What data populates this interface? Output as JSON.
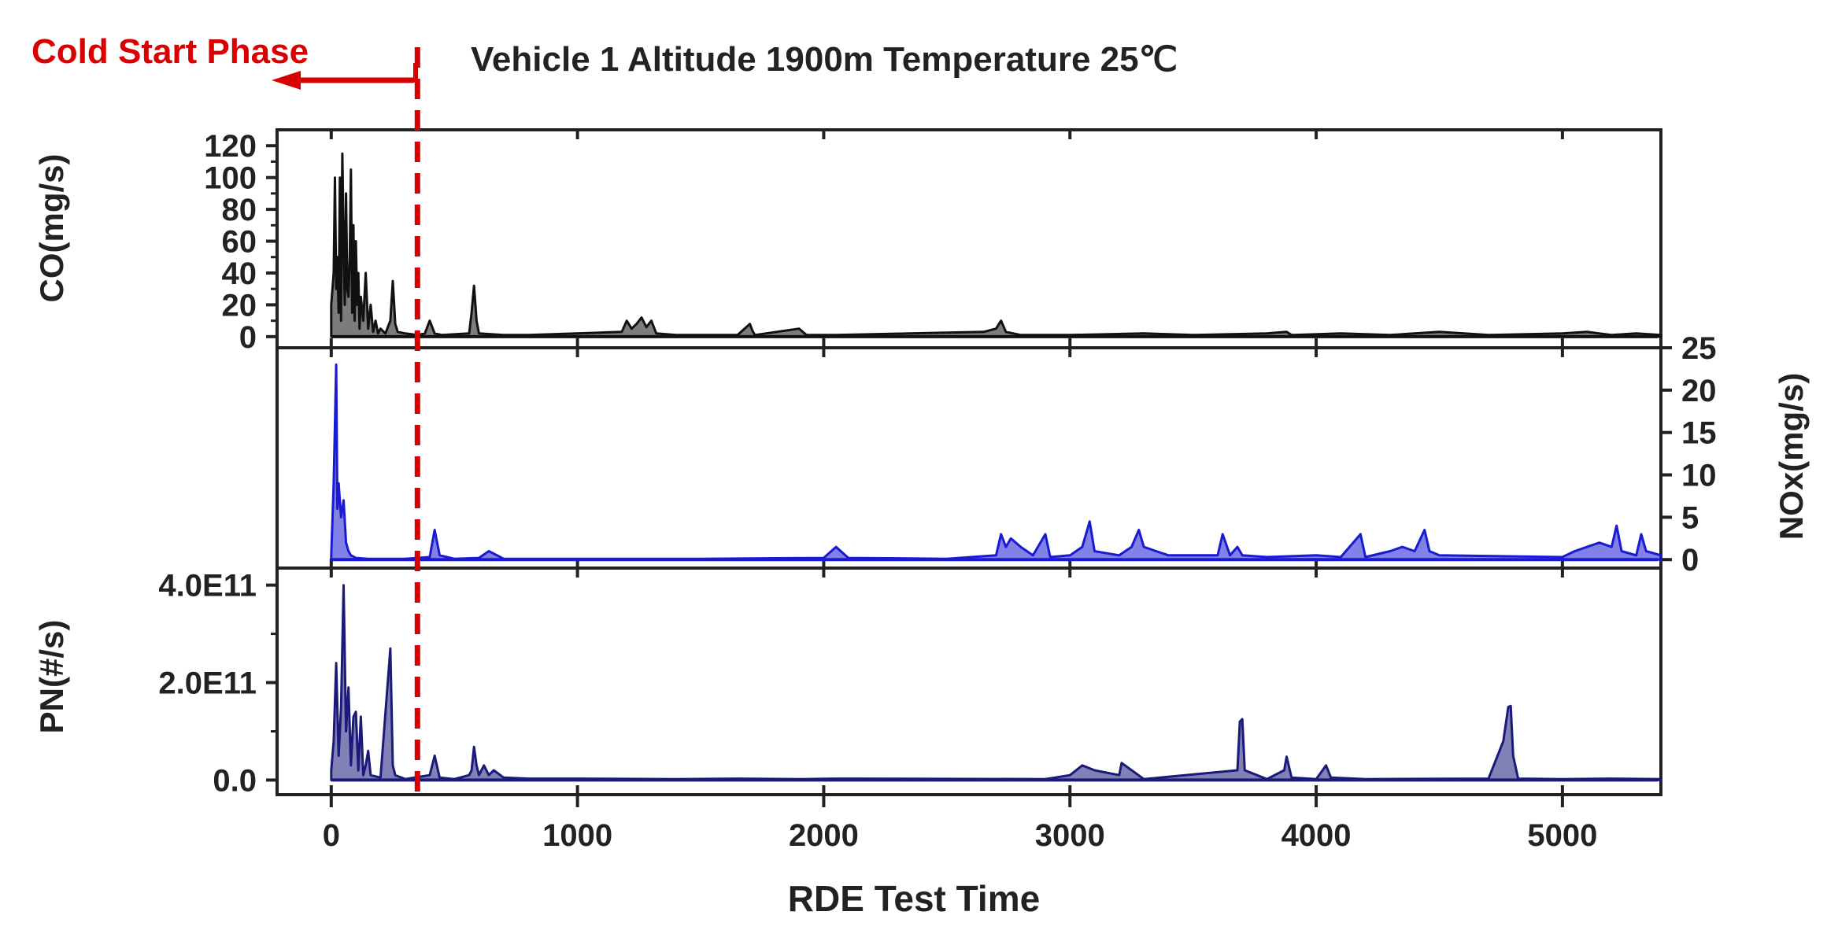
{
  "cold_start_label": "Cold Start Phase",
  "title": "Vehicle 1  Altitude 1900m  Temperature 25℃",
  "colors": {
    "co": "#111111",
    "nox": "#1a1ad4",
    "pn": "#1a1a7a",
    "cold_start": "#d80000",
    "axis": "#222222"
  },
  "chart_data": [
    {
      "type": "line",
      "panel": "CO",
      "ylabel": "CO(mg/s)",
      "axis_side": "left",
      "ylim": [
        -7,
        130
      ],
      "yticks": [
        0,
        20,
        40,
        60,
        80,
        100,
        120
      ],
      "yticklabels": [
        "0",
        "20",
        "40",
        "60",
        "80",
        "100",
        "120"
      ],
      "series": [
        {
          "x": [
            0,
            10,
            15,
            20,
            25,
            30,
            35,
            40,
            45,
            50,
            55,
            60,
            65,
            70,
            75,
            80,
            85,
            90,
            95,
            100,
            105,
            110,
            115,
            120,
            130,
            140,
            150,
            160,
            170,
            180,
            190,
            200,
            220,
            240,
            250,
            260,
            270,
            300,
            350,
            380,
            400,
            420,
            450,
            560,
            570,
            580,
            590,
            600,
            700,
            800,
            1000,
            1180,
            1200,
            1220,
            1240,
            1260,
            1280,
            1300,
            1320,
            1400,
            1650,
            1700,
            1710,
            1720,
            1900,
            1930,
            2050,
            2350,
            2650,
            2700,
            2720,
            2740,
            2800,
            3000,
            3300,
            3500,
            3800,
            3880,
            3900,
            4100,
            4300,
            4400,
            4500,
            4700,
            5000,
            5100,
            5200,
            5300,
            5400
          ],
          "values": [
            20,
            40,
            100,
            30,
            50,
            15,
            100,
            10,
            115,
            60,
            20,
            90,
            30,
            25,
            50,
            105,
            15,
            70,
            10,
            60,
            20,
            40,
            5,
            25,
            10,
            40,
            5,
            20,
            3,
            10,
            2,
            5,
            2,
            10,
            35,
            8,
            3,
            2,
            1,
            2,
            10,
            2,
            1,
            2,
            15,
            32,
            10,
            2,
            1,
            1,
            2,
            3,
            10,
            5,
            8,
            12,
            6,
            10,
            2,
            1,
            1,
            8,
            4,
            1,
            5,
            1,
            1,
            2,
            3,
            5,
            10,
            3,
            1,
            1,
            2,
            1,
            2,
            3,
            1,
            2,
            1,
            2,
            3,
            1,
            2,
            3,
            1,
            2,
            1
          ]
        }
      ]
    },
    {
      "type": "line",
      "panel": "NOx",
      "ylabel": "NOx(mg/s)",
      "axis_side": "right",
      "ylim": [
        -1,
        25
      ],
      "yticks": [
        0,
        5,
        10,
        15,
        20,
        25
      ],
      "yticklabels": [
        "0",
        "5",
        "10",
        "15",
        "20",
        "25"
      ],
      "series": [
        {
          "x": [
            0,
            10,
            20,
            25,
            30,
            40,
            50,
            60,
            70,
            80,
            100,
            150,
            300,
            400,
            420,
            440,
            500,
            600,
            640,
            700,
            1000,
            1500,
            2000,
            2050,
            2100,
            2500,
            2700,
            2720,
            2740,
            2760,
            2800,
            2850,
            2900,
            2920,
            3000,
            3050,
            3080,
            3100,
            3200,
            3250,
            3280,
            3300,
            3350,
            3400,
            3600,
            3620,
            3650,
            3680,
            3700,
            3800,
            4000,
            4100,
            4180,
            4200,
            4300,
            4350,
            4400,
            4440,
            4460,
            4500,
            5000,
            5050,
            5100,
            5150,
            5200,
            5220,
            5240,
            5300,
            5320,
            5340,
            5400
          ],
          "values": [
            0.5,
            9,
            23,
            6,
            9,
            5,
            7,
            2,
            1,
            0.5,
            0.2,
            0.1,
            0.1,
            0.3,
            3.5,
            0.5,
            0.1,
            0.2,
            1,
            0.1,
            0.1,
            0.1,
            0.2,
            1.5,
            0.2,
            0.1,
            0.5,
            3,
            1.5,
            2.5,
            1.5,
            0.5,
            3,
            0.3,
            0.5,
            1.5,
            4.5,
            1,
            0.5,
            1.5,
            3.5,
            1.5,
            1,
            0.5,
            0.5,
            3,
            0.5,
            1.5,
            0.5,
            0.3,
            0.5,
            0.3,
            3,
            0.3,
            1,
            1.5,
            1,
            3.5,
            1,
            0.5,
            0.3,
            1,
            1.5,
            2,
            1.5,
            4,
            1,
            0.5,
            3,
            1,
            0.5
          ]
        }
      ]
    },
    {
      "type": "line",
      "panel": "PN",
      "ylabel": "PN(#/s)",
      "axis_side": "left",
      "ylim": [
        -30000000000.0,
        435000000000.0
      ],
      "yticks": [
        0,
        200000000000,
        400000000000
      ],
      "yticklabels": [
        "0.0",
        "2.0E11",
        "4.0E11"
      ],
      "series": [
        {
          "x": [
            0,
            10,
            20,
            30,
            40,
            50,
            60,
            70,
            80,
            90,
            100,
            110,
            120,
            130,
            140,
            150,
            160,
            200,
            240,
            250,
            260,
            300,
            400,
            420,
            440,
            500,
            560,
            570,
            580,
            590,
            600,
            620,
            640,
            660,
            700,
            800,
            1000,
            1400,
            1650,
            1900,
            2050,
            2100,
            2900,
            3000,
            3050,
            3100,
            3200,
            3210,
            3300,
            3680,
            3690,
            3700,
            3710,
            3800,
            3870,
            3880,
            3900,
            4000,
            4040,
            4060,
            4200,
            4700,
            4760,
            4780,
            4790,
            4800,
            4820,
            5000,
            5200,
            5400
          ],
          "values": [
            20000000000.0,
            80000000000.0,
            240000000000.0,
            50000000000.0,
            150000000000.0,
            400000000000.0,
            100000000000.0,
            190000000000.0,
            30000000000.0,
            130000000000.0,
            140000000000.0,
            20000000000.0,
            130000000000.0,
            10000000000.0,
            30000000000.0,
            60000000000.0,
            10000000000.0,
            5000000000.0,
            270000000000.0,
            30000000000.0,
            10000000000.0,
            2000000000.0,
            10000000000.0,
            50000000000.0,
            5000000000.0,
            2000000000.0,
            10000000000.0,
            20000000000.0,
            68000000000.0,
            30000000000.0,
            10000000000.0,
            30000000000.0,
            10000000000.0,
            20000000000.0,
            5000000000.0,
            3000000000.0,
            3000000000.0,
            2000000000.0,
            3000000000.0,
            2000000000.0,
            3000000000.0,
            3000000000.0,
            2000000000.0,
            10000000000.0,
            30000000000.0,
            20000000000.0,
            10000000000.0,
            35000000000.0,
            2000000000.0,
            20000000000.0,
            120000000000.0,
            125000000000.0,
            20000000000.0,
            2000000000.0,
            20000000000.0,
            48000000000.0,
            5000000000.0,
            2000000000.0,
            30000000000.0,
            5000000000.0,
            2000000000.0,
            3000000000.0,
            80000000000.0,
            150000000000.0,
            152000000000.0,
            50000000000.0,
            3000000000.0,
            2000000000.0,
            3000000000.0,
            2000000000.0
          ]
        }
      ]
    }
  ],
  "x_axis": {
    "xlabel": "RDE Test Time",
    "xlim": [
      -220,
      5400
    ],
    "xticks": [
      0,
      1000,
      2000,
      3000,
      4000,
      5000
    ],
    "xticklabels": [
      "0",
      "1000",
      "2000",
      "3000",
      "4000",
      "5000"
    ]
  },
  "cold_start_x": 350
}
